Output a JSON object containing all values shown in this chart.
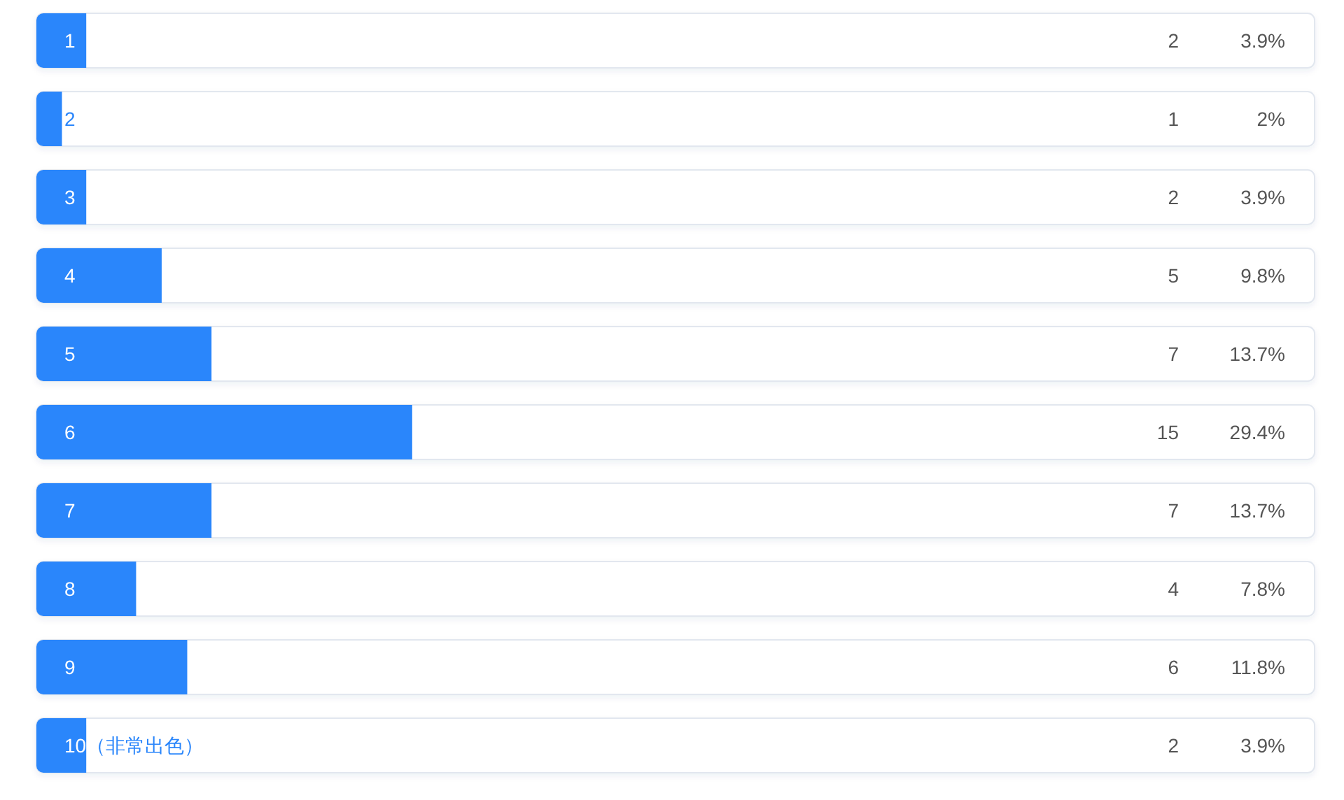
{
  "chart_data": {
    "type": "bar",
    "orientation": "horizontal",
    "categories": [
      "1",
      "2",
      "3",
      "4",
      "5",
      "6",
      "7",
      "8",
      "9",
      "10（非常出色）"
    ],
    "series": [
      {
        "color": "#2a86fb",
        "values": [
          3.9,
          2,
          3.9,
          9.8,
          13.7,
          29.4,
          13.7,
          7.8,
          11.8,
          3.9
        ],
        "value_labels": [
          "3.9%",
          "2%",
          "3.9%",
          "9.8%",
          "13.7%",
          "29.4%",
          "13.7%",
          "7.8%",
          "11.8%",
          "3.9%"
        ]
      }
    ],
    "xlim": [
      0,
      100
    ],
    "tick_labels": "y",
    "annotations": [
      "2",
      "1",
      "2",
      "5",
      "7",
      "15",
      "7",
      "4",
      "6",
      "2"
    ]
  }
}
